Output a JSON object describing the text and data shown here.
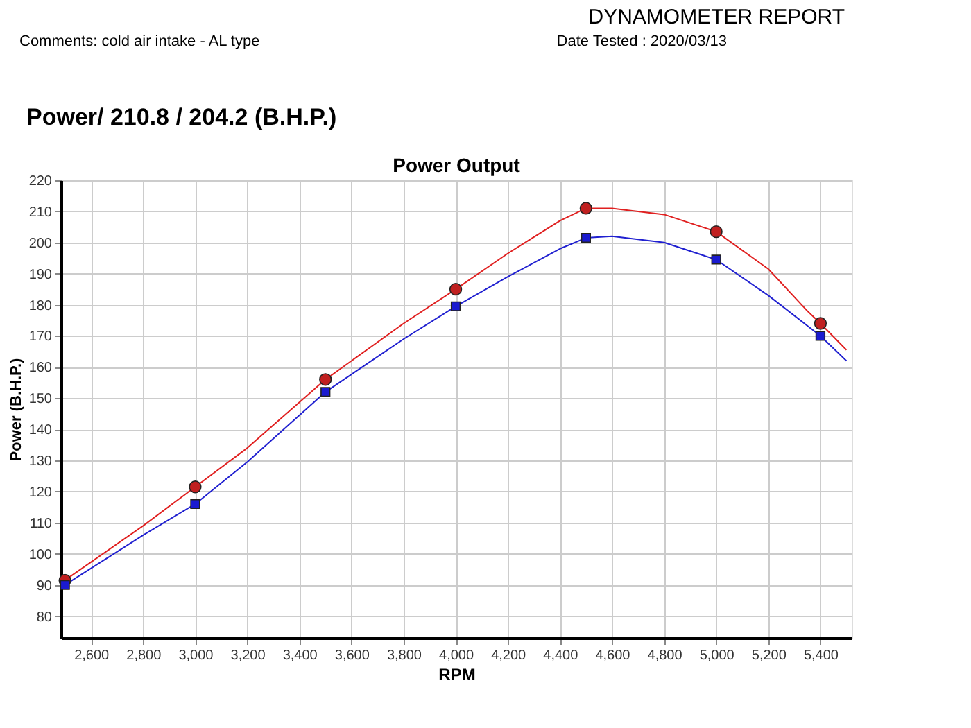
{
  "chart_data": {
    "type": "line",
    "title": "Power Output",
    "xlabel": "RPM",
    "ylabel": "Power (B.H.P.)",
    "annotations": [
      "DYNAMOMETER REPORT",
      "Date Tested :  2020/03/13",
      "Comments:  cold air intake - AL type",
      "Power/ 210.8 / 204.2 (B.H.P.)"
    ],
    "series": [
      {
        "color": "#e02020",
        "x": [
          2500,
          2800,
          3000,
          3200,
          3500,
          3800,
          4000,
          4200,
          4400,
          4500,
          4600,
          4800,
          5000,
          5200,
          5350,
          5400,
          5500
        ],
        "values": [
          91.5,
          109,
          121.5,
          134,
          156,
          174,
          185,
          196.5,
          207,
          211,
          211,
          209,
          203.5,
          191.5,
          178,
          174,
          165.5
        ]
      },
      {
        "color": "#2020d0",
        "x": [
          2500,
          2800,
          3000,
          3200,
          3500,
          3800,
          4000,
          4200,
          4400,
          4500,
          4600,
          4800,
          5000,
          5200,
          5400,
          5500
        ],
        "values": [
          90,
          106,
          116,
          129.5,
          152,
          169,
          179.5,
          189,
          198,
          201.5,
          202,
          200,
          194.5,
          183,
          170,
          162
        ]
      },
      {
        "type": "scatter",
        "marker": "circle",
        "color": "#c02020",
        "x": [
          2500,
          3000,
          3500,
          4000,
          4500,
          5000,
          5400
        ],
        "values": [
          91.5,
          121.5,
          156,
          185,
          211,
          203.5,
          174
        ]
      },
      {
        "type": "scatter",
        "marker": "square",
        "color": "#1a1ad0",
        "x": [
          2500,
          3000,
          3500,
          4000,
          4500,
          5000,
          5400
        ],
        "values": [
          90,
          116,
          152,
          179.5,
          201.5,
          194.5,
          170
        ]
      }
    ],
    "xlim": [
      2485,
      5520
    ],
    "ylim": [
      73,
      220
    ],
    "xticks": [
      {
        "value": 2600,
        "label": "2,600"
      },
      {
        "value": 2800,
        "label": "2,800"
      },
      {
        "value": 3000,
        "label": "3,000"
      },
      {
        "value": 3200,
        "label": "3,200"
      },
      {
        "value": 3400,
        "label": "3,400"
      },
      {
        "value": 3600,
        "label": "3,600"
      },
      {
        "value": 3800,
        "label": "3,800"
      },
      {
        "value": 4000,
        "label": "4,000"
      },
      {
        "value": 4200,
        "label": "4,200"
      },
      {
        "value": 4400,
        "label": "4,400"
      },
      {
        "value": 4600,
        "label": "4,600"
      },
      {
        "value": 4800,
        "label": "4,800"
      },
      {
        "value": 5000,
        "label": "5,000"
      },
      {
        "value": 5200,
        "label": "5,200"
      },
      {
        "value": 5400,
        "label": "5,400"
      }
    ],
    "yticks": [
      80,
      90,
      100,
      110,
      120,
      130,
      140,
      150,
      160,
      170,
      180,
      190,
      200,
      210,
      220
    ],
    "grid": true
  }
}
